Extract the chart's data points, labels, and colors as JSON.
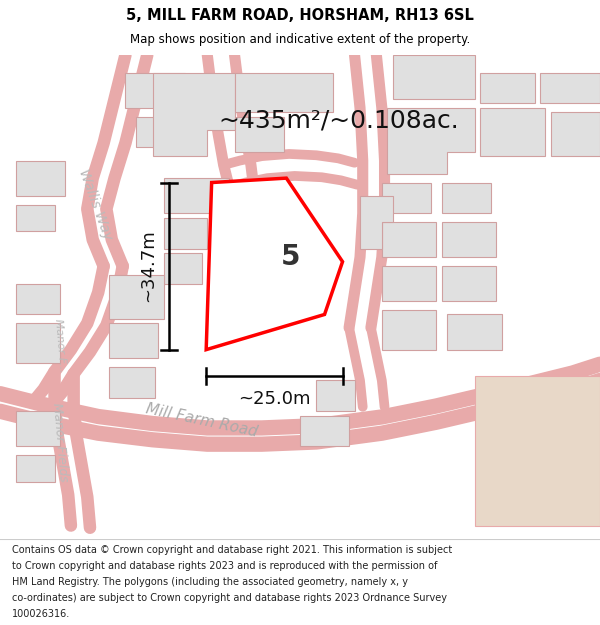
{
  "title": "5, MILL FARM ROAD, HORSHAM, RH13 6SL",
  "subtitle": "Map shows position and indicative extent of the property.",
  "area_text": "~435m²/~0.108ac.",
  "plot_number": "5",
  "dim_height": "~34.7m",
  "dim_width": "~25.0m",
  "footer_lines": [
    "Contains OS data © Crown copyright and database right 2021. This information is subject",
    "to Crown copyright and database rights 2023 and is reproduced with the permission of",
    "HM Land Registry. The polygons (including the associated geometry, namely x, y",
    "co-ordinates) are subject to Crown copyright and database rights 2023 Ordnance Survey",
    "100026316."
  ],
  "background_color": "#ffffff",
  "map_bg": "#f7f7f7",
  "road_color": "#e8aaaa",
  "building_fill": "#e0e0e0",
  "building_edge": "#d0a0a0",
  "property_color": "#ff0000",
  "beige_fill": "#e8d8c8",
  "figsize": [
    6.0,
    6.25
  ],
  "dpi": 100
}
